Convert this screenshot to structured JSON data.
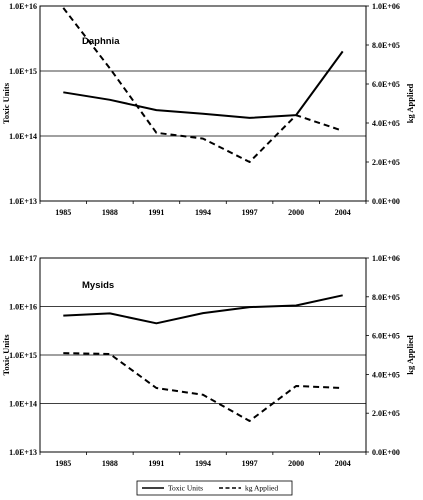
{
  "chart_data": [
    {
      "type": "line",
      "title": "Daphnia",
      "x": [
        "1985",
        "1988",
        "1991",
        "1994",
        "1997",
        "2000",
        "2004"
      ],
      "ylabel": "Toxic Units",
      "y2label": "kg Applied",
      "yscale": "log",
      "ylim": [
        10000000000000.0,
        1e+16
      ],
      "yticks": [
        "1.0E+13",
        "1.0E+14",
        "1.0E+15",
        "1.0E+16"
      ],
      "y2lim": [
        0,
        1000000
      ],
      "y2ticks": [
        "0.0E+00",
        "2.0E+05",
        "4.0E+05",
        "6.0E+05",
        "8.0E+05",
        "1.0E+06"
      ],
      "grid_values": [
        100000000000000.0,
        1000000000000000.0
      ],
      "series": [
        {
          "name": "Toxic Units",
          "axis": "left",
          "style": "solid",
          "values": [
            470000000000000.0,
            360000000000000.0,
            250000000000000.0,
            220000000000000.0,
            190000000000000.0,
            210000000000000.0,
            2000000000000000.0
          ]
        },
        {
          "name": "kg  Applied",
          "axis": "right",
          "style": "dashed",
          "values": [
            990000,
            680000,
            350000,
            320000,
            200000,
            440000,
            360000
          ]
        }
      ]
    },
    {
      "type": "line",
      "title": "Mysids",
      "x": [
        "1985",
        "1988",
        "1991",
        "1994",
        "1997",
        "2000",
        "2004"
      ],
      "ylabel": "Toxic Units",
      "y2label": "kg Applied",
      "yscale": "log",
      "ylim": [
        10000000000000.0,
        1e+17
      ],
      "yticks": [
        "1.0E+13",
        "1.0E+14",
        "1.0E+15",
        "1.0E+16",
        "1.0E+17"
      ],
      "y2lim": [
        0,
        1000000
      ],
      "y2ticks": [
        "0.0E+00",
        "2.0E+05",
        "4.0E+05",
        "6.0E+05",
        "8.0E+05",
        "1.0E+06"
      ],
      "grid_values": [
        100000000000000.0,
        1000000000000000.0,
        1e+16
      ],
      "series": [
        {
          "name": "Toxic Units",
          "axis": "left",
          "style": "solid",
          "values": [
            6500000000000000.0,
            7200000000000000.0,
            4500000000000000.0,
            7300000000000000.0,
            9700000000000000.0,
            1.05e+16,
            1.7e+16
          ]
        },
        {
          "name": "kg  Applied",
          "axis": "right",
          "style": "dashed",
          "values": [
            510000,
            505000,
            330000,
            295000,
            160000,
            340000,
            330000
          ]
        }
      ]
    }
  ],
  "legend": {
    "placement": "bottom",
    "items": [
      {
        "label": "Toxic Units",
        "style": "solid"
      },
      {
        "label": "kg  Applied",
        "style": "dashed"
      }
    ]
  }
}
